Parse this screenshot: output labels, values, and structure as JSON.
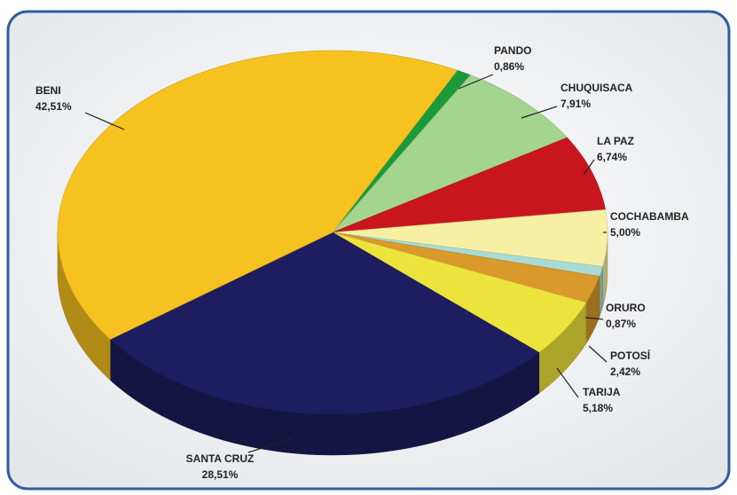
{
  "chart_data": {
    "type": "pie3d",
    "categories": [
      "PANDO",
      "CHUQUISACA",
      "LA PAZ",
      "COCHABAMBA",
      "ORURO",
      "POTOSÍ",
      "TARIJA",
      "SANTA CRUZ",
      "BENI"
    ],
    "values": [
      0.86,
      7.91,
      6.74,
      5.0,
      0.87,
      2.42,
      5.18,
      28.51,
      42.51
    ],
    "value_labels": [
      "0,86%",
      "7,91%",
      "6,74%",
      "5,00%",
      "0,87%",
      "2,42%",
      "5,18%",
      "28,51%",
      "42,51%"
    ],
    "colors": [
      "#1b9a3c",
      "#a3d58e",
      "#c9161e",
      "#f7f0a4",
      "#a9dbd3",
      "#d99a2b",
      "#ece43c",
      "#1d1d5f",
      "#f5c21f"
    ]
  }
}
